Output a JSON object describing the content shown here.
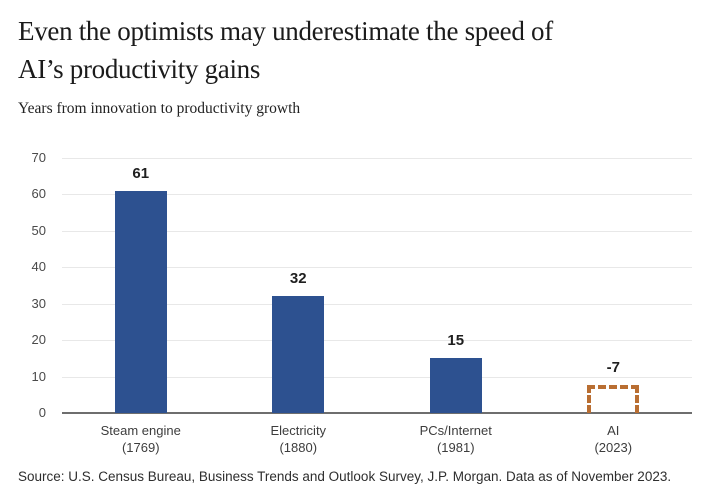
{
  "header": {
    "title_line1": "Even the optimists may underestimate the speed of",
    "title_line2": "AI’s productivity gains",
    "subtitle": "Years from innovation to productivity growth"
  },
  "chart_data": {
    "type": "bar",
    "title": "Years from innovation to productivity growth",
    "categories": [
      {
        "label": "Steam engine",
        "year": "(1769)"
      },
      {
        "label": "Electricity",
        "year": "(1880)"
      },
      {
        "label": "PCs/Internet",
        "year": "(1981)"
      },
      {
        "label": "AI",
        "year": "(2023)"
      }
    ],
    "values": [
      61,
      32,
      15,
      -7
    ],
    "bar_styles": [
      "solid",
      "solid",
      "solid",
      "dashed"
    ],
    "xlabel": "",
    "ylabel": "Years from innovation to productivity growth",
    "ylim": [
      0,
      70
    ],
    "yticks": [
      0,
      10,
      20,
      30,
      40,
      50,
      60,
      70
    ],
    "grid": true,
    "legend": "none"
  },
  "source": "Source: U.S. Census Bureau, Business Trends and Outlook Survey, J.P. Morgan. Data as of November 2023.",
  "colors": {
    "bar": "#2d5190",
    "ai_dashed": "#b96e32",
    "gridline": "#e8e8e8",
    "baseline": "#6e6e6e",
    "title_text": "#1b1b1b"
  }
}
